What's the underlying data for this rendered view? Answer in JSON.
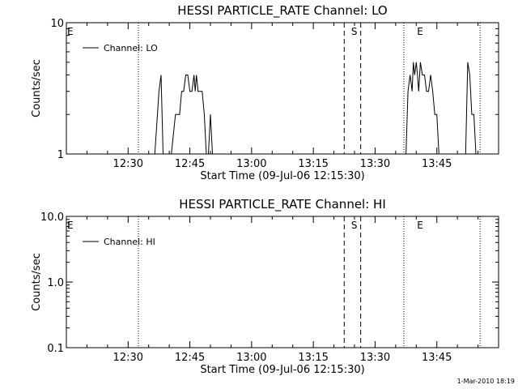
{
  "chart_data": [
    {
      "type": "line",
      "title": "HESSI PARTICLE_RATE Channel: LO",
      "xlabel": "Start Time (09-Jul-06 12:15:30)",
      "ylabel": "Counts/sec",
      "yscale": "log",
      "ylim": [
        1,
        10
      ],
      "ytick_values": [
        1,
        10
      ],
      "ytick_labels": [
        "1",
        "10"
      ],
      "xlim_minutes": [
        0,
        105
      ],
      "xtick_values": [
        15,
        30,
        45,
        60,
        75,
        90
      ],
      "xtick_labels": [
        "12:30",
        "12:45",
        "13:00",
        "13:15",
        "13:30",
        "13:45"
      ],
      "legend": "top-left",
      "series": [
        {
          "name": "Channel: LO",
          "x": [
            21.5,
            22.5,
            23.0,
            23.5,
            24.0,
            25.5,
            26.5,
            27.0,
            27.5,
            28.0,
            28.5,
            29.0,
            29.5,
            30.0,
            30.5,
            31.0,
            31.3,
            31.6,
            32.0,
            32.5,
            33.0,
            33.5,
            34.0,
            34.5,
            35.0,
            35.5,
            82.5,
            83.0,
            83.5,
            84.0,
            84.3,
            84.6,
            85.0,
            85.3,
            85.6,
            86.0,
            86.5,
            87.0,
            87.5,
            88.0,
            88.5,
            89.0,
            89.5,
            90.0,
            90.5,
            91.0,
            91.5,
            92.0,
            92.5,
            93.0,
            93.5,
            97.0,
            97.5,
            98.0,
            98.5,
            99.0,
            99.5
          ],
          "y": [
            1,
            3,
            4,
            1,
            1,
            1,
            2,
            2,
            2,
            3,
            3,
            4,
            4,
            3,
            3,
            4,
            3,
            4,
            3,
            3,
            3,
            2,
            1,
            1,
            2,
            1,
            1,
            3,
            4,
            3,
            5,
            4,
            5,
            4,
            3,
            5,
            4,
            4,
            3,
            3,
            4,
            3,
            2,
            2,
            1,
            1,
            1,
            1,
            1,
            1,
            1,
            1,
            5,
            4,
            2,
            2,
            1
          ]
        }
      ],
      "annotations": [
        {
          "text": "E",
          "x_minutes": 0
        },
        {
          "text": "S",
          "x_minutes": 69
        },
        {
          "text": "E",
          "x_minutes": 85
        }
      ],
      "vlines": [
        {
          "x_minutes": 17.5,
          "style": "dotted"
        },
        {
          "x_minutes": 67.5,
          "style": "dashed"
        },
        {
          "x_minutes": 71.5,
          "style": "dashed"
        },
        {
          "x_minutes": 82.0,
          "style": "dotted"
        },
        {
          "x_minutes": 100.5,
          "style": "dotted"
        }
      ]
    },
    {
      "type": "line",
      "title": "HESSI PARTICLE_RATE Channel: HI",
      "xlabel": "Start Time (09-Jul-06 12:15:30)",
      "ylabel": "Counts/sec",
      "yscale": "log",
      "ylim": [
        0.1,
        10
      ],
      "ytick_values": [
        0.1,
        1,
        10
      ],
      "ytick_labels": [
        "0.1",
        "1.0",
        "10.0"
      ],
      "xlim_minutes": [
        0,
        105
      ],
      "xtick_values": [
        15,
        30,
        45,
        60,
        75,
        90
      ],
      "xtick_labels": [
        "12:30",
        "12:45",
        "13:00",
        "13:15",
        "13:30",
        "13:45"
      ],
      "legend": "top-left",
      "series": [
        {
          "name": "Channel: HI",
          "x": [],
          "y": []
        }
      ],
      "annotations": [
        {
          "text": "E",
          "x_minutes": 0
        },
        {
          "text": "S",
          "x_minutes": 69
        },
        {
          "text": "E",
          "x_minutes": 85
        }
      ],
      "vlines": [
        {
          "x_minutes": 17.5,
          "style": "dotted"
        },
        {
          "x_minutes": 67.5,
          "style": "dashed"
        },
        {
          "x_minutes": 71.5,
          "style": "dashed"
        },
        {
          "x_minutes": 82.0,
          "style": "dotted"
        },
        {
          "x_minutes": 100.5,
          "style": "dotted"
        }
      ]
    }
  ],
  "footer": {
    "timestamp": "1-Mar-2010 18:19"
  }
}
